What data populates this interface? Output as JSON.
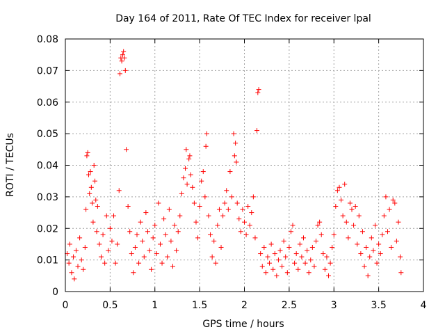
{
  "chart_data": {
    "type": "scatter",
    "title": "Day 164 of 2011, Rate Of TEC Index for receiver lpal",
    "xlabel": "GPS time / hours",
    "ylabel": "ROTI / TECUs",
    "xlim": [
      0,
      4
    ],
    "ylim": [
      0,
      0.08
    ],
    "xticks": [
      0,
      0.5,
      1,
      1.5,
      2,
      2.5,
      3,
      3.5,
      4
    ],
    "xtick_labels": [
      "0",
      "0.5",
      "1",
      "1.5",
      "2",
      "2.5",
      "3",
      "3.5",
      "4"
    ],
    "yticks": [
      0,
      0.01,
      0.02,
      0.03,
      0.04,
      0.05,
      0.06,
      0.07,
      0.08
    ],
    "ytick_labels": [
      "0",
      "0.01",
      "0.02",
      "0.03",
      "0.04",
      "0.05",
      "0.06",
      "0.07",
      "0.08"
    ],
    "grid": true,
    "marker": "+",
    "color": "#ff0000",
    "series": [
      {
        "name": "ROTI",
        "points": [
          [
            0.02,
            0.012
          ],
          [
            0.04,
            0.009
          ],
          [
            0.05,
            0.015
          ],
          [
            0.07,
            0.006
          ],
          [
            0.09,
            0.011
          ],
          [
            0.1,
            0.004
          ],
          [
            0.12,
            0.013
          ],
          [
            0.14,
            0.008
          ],
          [
            0.16,
            0.017
          ],
          [
            0.18,
            0.01
          ],
          [
            0.2,
            0.007
          ],
          [
            0.22,
            0.014
          ],
          [
            0.23,
            0.026
          ],
          [
            0.24,
            0.043
          ],
          [
            0.25,
            0.044
          ],
          [
            0.26,
            0.037
          ],
          [
            0.27,
            0.031
          ],
          [
            0.28,
            0.038
          ],
          [
            0.29,
            0.033
          ],
          [
            0.3,
            0.028
          ],
          [
            0.31,
            0.022
          ],
          [
            0.32,
            0.04
          ],
          [
            0.33,
            0.035
          ],
          [
            0.34,
            0.029
          ],
          [
            0.35,
            0.019
          ],
          [
            0.36,
            0.027
          ],
          [
            0.38,
            0.015
          ],
          [
            0.4,
            0.011
          ],
          [
            0.42,
            0.018
          ],
          [
            0.44,
            0.009
          ],
          [
            0.46,
            0.024
          ],
          [
            0.48,
            0.013
          ],
          [
            0.5,
            0.02
          ],
          [
            0.52,
            0.016
          ],
          [
            0.54,
            0.024
          ],
          [
            0.56,
            0.009
          ],
          [
            0.58,
            0.015
          ],
          [
            0.6,
            0.032
          ],
          [
            0.61,
            0.069
          ],
          [
            0.62,
            0.074
          ],
          [
            0.63,
            0.073
          ],
          [
            0.64,
            0.075
          ],
          [
            0.65,
            0.076
          ],
          [
            0.66,
            0.074
          ],
          [
            0.67,
            0.07
          ],
          [
            0.68,
            0.045
          ],
          [
            0.7,
            0.027
          ],
          [
            0.72,
            0.019
          ],
          [
            0.74,
            0.012
          ],
          [
            0.76,
            0.006
          ],
          [
            0.78,
            0.014
          ],
          [
            0.8,
            0.018
          ],
          [
            0.82,
            0.009
          ],
          [
            0.84,
            0.022
          ],
          [
            0.86,
            0.016
          ],
          [
            0.88,
            0.011
          ],
          [
            0.9,
            0.025
          ],
          [
            0.92,
            0.019
          ],
          [
            0.94,
            0.013
          ],
          [
            0.96,
            0.007
          ],
          [
            0.98,
            0.017
          ],
          [
            1.0,
            0.021
          ],
          [
            1.02,
            0.012
          ],
          [
            1.04,
            0.028
          ],
          [
            1.06,
            0.015
          ],
          [
            1.08,
            0.009
          ],
          [
            1.1,
            0.023
          ],
          [
            1.12,
            0.018
          ],
          [
            1.14,
            0.011
          ],
          [
            1.16,
            0.026
          ],
          [
            1.18,
            0.016
          ],
          [
            1.2,
            0.008
          ],
          [
            1.22,
            0.021
          ],
          [
            1.24,
            0.013
          ],
          [
            1.26,
            0.019
          ],
          [
            1.28,
            0.024
          ],
          [
            1.3,
            0.031
          ],
          [
            1.32,
            0.036
          ],
          [
            1.34,
            0.039
          ],
          [
            1.35,
            0.045
          ],
          [
            1.36,
            0.034
          ],
          [
            1.38,
            0.042
          ],
          [
            1.39,
            0.043
          ],
          [
            1.4,
            0.037
          ],
          [
            1.42,
            0.033
          ],
          [
            1.44,
            0.028
          ],
          [
            1.46,
            0.022
          ],
          [
            1.48,
            0.017
          ],
          [
            1.5,
            0.027
          ],
          [
            1.52,
            0.035
          ],
          [
            1.54,
            0.038
          ],
          [
            1.56,
            0.03
          ],
          [
            1.57,
            0.046
          ],
          [
            1.58,
            0.05
          ],
          [
            1.6,
            0.024
          ],
          [
            1.62,
            0.018
          ],
          [
            1.64,
            0.011
          ],
          [
            1.66,
            0.016
          ],
          [
            1.68,
            0.009
          ],
          [
            1.7,
            0.021
          ],
          [
            1.72,
            0.026
          ],
          [
            1.74,
            0.014
          ],
          [
            1.76,
            0.024
          ],
          [
            1.78,
            0.028
          ],
          [
            1.8,
            0.032
          ],
          [
            1.82,
            0.026
          ],
          [
            1.84,
            0.038
          ],
          [
            1.86,
            0.03
          ],
          [
            1.88,
            0.05
          ],
          [
            1.89,
            0.043
          ],
          [
            1.9,
            0.047
          ],
          [
            1.91,
            0.041
          ],
          [
            1.92,
            0.028
          ],
          [
            1.94,
            0.023
          ],
          [
            1.96,
            0.019
          ],
          [
            1.98,
            0.026
          ],
          [
            2.0,
            0.022
          ],
          [
            2.02,
            0.018
          ],
          [
            2.04,
            0.027
          ],
          [
            2.06,
            0.021
          ],
          [
            2.08,
            0.025
          ],
          [
            2.1,
            0.03
          ],
          [
            2.12,
            0.017
          ],
          [
            2.14,
            0.051
          ],
          [
            2.15,
            0.063
          ],
          [
            2.16,
            0.064
          ],
          [
            2.18,
            0.012
          ],
          [
            2.2,
            0.008
          ],
          [
            2.22,
            0.014
          ],
          [
            2.24,
            0.006
          ],
          [
            2.26,
            0.011
          ],
          [
            2.28,
            0.009
          ],
          [
            2.3,
            0.015
          ],
          [
            2.32,
            0.007
          ],
          [
            2.34,
            0.012
          ],
          [
            2.36,
            0.005
          ],
          [
            2.38,
            0.01
          ],
          [
            2.4,
            0.013
          ],
          [
            2.42,
            0.008
          ],
          [
            2.44,
            0.016
          ],
          [
            2.46,
            0.011
          ],
          [
            2.48,
            0.006
          ],
          [
            2.5,
            0.014
          ],
          [
            2.52,
            0.019
          ],
          [
            2.54,
            0.021
          ],
          [
            2.56,
            0.009
          ],
          [
            2.58,
            0.012
          ],
          [
            2.6,
            0.007
          ],
          [
            2.62,
            0.015
          ],
          [
            2.64,
            0.011
          ],
          [
            2.66,
            0.017
          ],
          [
            2.68,
            0.009
          ],
          [
            2.7,
            0.013
          ],
          [
            2.72,
            0.006
          ],
          [
            2.74,
            0.01
          ],
          [
            2.76,
            0.014
          ],
          [
            2.78,
            0.008
          ],
          [
            2.8,
            0.016
          ],
          [
            2.82,
            0.021
          ],
          [
            2.84,
            0.022
          ],
          [
            2.86,
            0.018
          ],
          [
            2.88,
            0.012
          ],
          [
            2.9,
            0.007
          ],
          [
            2.92,
            0.011
          ],
          [
            2.94,
            0.005
          ],
          [
            2.96,
            0.009
          ],
          [
            2.98,
            0.014
          ],
          [
            3.0,
            0.018
          ],
          [
            3.02,
            0.027
          ],
          [
            3.04,
            0.032
          ],
          [
            3.06,
            0.033
          ],
          [
            3.08,
            0.029
          ],
          [
            3.1,
            0.024
          ],
          [
            3.12,
            0.034
          ],
          [
            3.14,
            0.022
          ],
          [
            3.16,
            0.017
          ],
          [
            3.18,
            0.028
          ],
          [
            3.2,
            0.026
          ],
          [
            3.22,
            0.021
          ],
          [
            3.24,
            0.027
          ],
          [
            3.26,
            0.015
          ],
          [
            3.28,
            0.024
          ],
          [
            3.3,
            0.012
          ],
          [
            3.32,
            0.019
          ],
          [
            3.34,
            0.008
          ],
          [
            3.36,
            0.014
          ],
          [
            3.38,
            0.005
          ],
          [
            3.4,
            0.011
          ],
          [
            3.42,
            0.017
          ],
          [
            3.44,
            0.013
          ],
          [
            3.46,
            0.021
          ],
          [
            3.48,
            0.009
          ],
          [
            3.5,
            0.015
          ],
          [
            3.52,
            0.012
          ],
          [
            3.54,
            0.018
          ],
          [
            3.56,
            0.024
          ],
          [
            3.58,
            0.03
          ],
          [
            3.6,
            0.019
          ],
          [
            3.62,
            0.026
          ],
          [
            3.64,
            0.014
          ],
          [
            3.66,
            0.029
          ],
          [
            3.68,
            0.028
          ],
          [
            3.7,
            0.016
          ],
          [
            3.72,
            0.022
          ],
          [
            3.74,
            0.011
          ],
          [
            3.75,
            0.006
          ]
        ]
      }
    ]
  }
}
